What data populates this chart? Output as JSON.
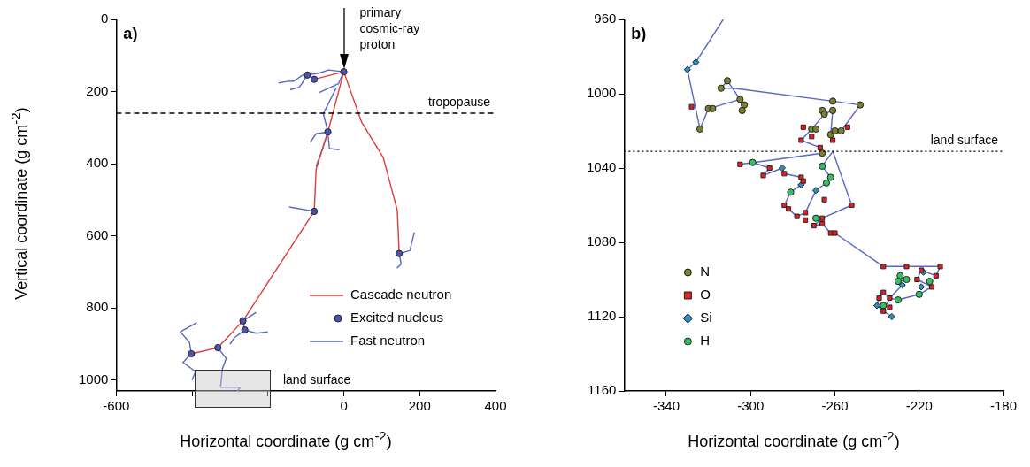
{
  "chart_data": [
    {
      "type": "line",
      "title": "a)",
      "xlabel": "Horizontal coordinate (g cm$^{-2}$)",
      "ylabel": "Vertical coordinate (g cm$^{-2}$)",
      "xlim": [
        -600,
        400
      ],
      "xticks": [
        -600,
        {
          "value": -400,
          "label": null
        },
        {
          "value": -200,
          "label": null
        },
        0,
        200,
        400
      ],
      "ylim": [
        1030,
        0
      ],
      "yticks": [
        0,
        200,
        400,
        600,
        800,
        1000
      ],
      "legend": "bottom right",
      "ref_lines": [
        {
          "axis": "y",
          "value": 260,
          "label": "tropopause",
          "color": "#000000",
          "line_style": "dashed"
        }
      ],
      "annotations": [
        {
          "text": "primary cosmic-ray proton",
          "x": 0,
          "y": 145
        },
        "land surface"
      ],
      "series": [
        {
          "name": "Cascade neutron",
          "color": "#e03a3a",
          "x": [
            0,
            -78,
            null,
            0,
            -42,
            -73,
            -78,
            -266,
            -332,
            -402,
            null,
            0,
            47,
            104,
            141,
            146
          ],
          "values": [
            145,
            166,
            null,
            145,
            312,
            415,
            532,
            836,
            910,
            927,
            null,
            145,
            285,
            383,
            529,
            649
          ]
        },
        {
          "name": "Excited nucleus",
          "type": "scatter",
          "marker": "circle",
          "color": "#4a55b0",
          "x": [
            0,
            -96,
            -78,
            -42,
            -78,
            146,
            -266,
            -261,
            -332,
            -402
          ],
          "values": [
            145,
            154,
            166,
            312,
            532,
            649,
            836,
            861,
            910,
            927
          ]
        },
        {
          "name": "Fast neutron",
          "color": "#5866c4",
          "x": [
            -172,
            -150,
            -132,
            -108,
            -96,
            -112,
            -118,
            -141,
            null,
            -96,
            -70,
            -40,
            0,
            null,
            0,
            -14,
            -66,
            null,
            -20,
            -54,
            -42,
            null,
            -89,
            -73,
            -42,
            -38,
            -12,
            null,
            -42,
            -60,
            -73,
            null,
            -144,
            -78,
            null,
            186,
            174,
            146,
            151,
            140,
            null,
            -231,
            -266,
            -261,
            -230,
            -200,
            null,
            -261,
            -289,
            -300,
            null,
            -388,
            -431,
            -407,
            -402,
            -424,
            -391,
            -400,
            null,
            -332,
            -310,
            -320,
            -325,
            -273,
            -280
          ],
          "values": [
            176,
            172,
            171,
            154,
            154,
            180,
            188,
            195,
            null,
            154,
            150,
            140,
            145,
            null,
            145,
            178,
            203,
            null,
            190,
            261,
            312,
            null,
            341,
            317,
            312,
            358,
            361,
            null,
            312,
            370,
            407,
            null,
            520,
            532,
            null,
            590,
            641,
            649,
            678,
            690,
            null,
            812,
            836,
            861,
            870,
            866,
            null,
            861,
            883,
            900,
            null,
            841,
            866,
            895,
            927,
            951,
            976,
            1000,
            null,
            910,
            940,
            968,
            1020,
            1020,
            1030
          ]
        }
      ]
    },
    {
      "type": "scatter",
      "title": "b)",
      "xlabel": "Horizontal coordinate (g cm$^{-2}$)",
      "xlim": [
        -360,
        -180
      ],
      "xticks": [
        -340,
        -300,
        -260,
        -220,
        -180
      ],
      "ylim": [
        1160,
        960
      ],
      "yticks": [
        960,
        1000,
        1040,
        1080,
        1120,
        1160
      ],
      "legend": "bottom left",
      "ref_lines": [
        {
          "axis": "y",
          "value": 1031,
          "label": "land surface",
          "color": "#000000",
          "line_style": "dotted"
        }
      ],
      "series": [
        {
          "type": "line",
          "color": "#5866c4",
          "x": [
            -313,
            -326,
            -330,
            -324,
            -320,
            -305,
            -311,
            -314,
            -308,
            -261,
            -248,
            -257,
            -262,
            -261,
            -265,
            -271,
            -276,
            -267,
            -266,
            -305,
            -299,
            -291,
            -294,
            -285,
            -284,
            -276,
            -276,
            -281,
            -284,
            -282,
            -278,
            -274,
            -269,
            -264,
            -262,
            -266,
            -261,
            -252,
            -266,
            -270,
            -266,
            -262,
            -260,
            -237,
            -226,
            -210,
            -212,
            -219,
            -221,
            -214,
            -220,
            -230,
            -234,
            -237,
            -239,
            -240,
            -237,
            -233,
            null,
            -229,
            -226,
            -230,
            -228,
            -234,
            -237
          ],
          "values": [
            960,
            983,
            987,
            1019,
            1008,
            1003,
            993,
            997,
            997,
            1004,
            1006,
            1020,
            1022,
            1009,
            1011,
            1019,
            1025,
            1029,
            1032,
            1038,
            1037,
            1040,
            1044,
            1040,
            1043,
            1045,
            1049,
            1053,
            1060,
            1062,
            1066,
            1064,
            1052,
            1048,
            1045,
            1039,
            1031,
            1060,
            1067,
            1071,
            1070,
            1075,
            1075,
            1093,
            1093,
            1093,
            1098,
            1095,
            1100,
            1104,
            1108,
            1111,
            1110,
            1107,
            1110,
            1114,
            1117,
            1120,
            null,
            1098,
            1100,
            1101,
            1103,
            1110,
            1117
          ]
        },
        {
          "name": "N",
          "marker": "circle",
          "color": "#7a8030",
          "x": [
            -311,
            -314,
            -305,
            -303,
            -304,
            -320,
            -318,
            -324,
            -261,
            -248,
            -266,
            -265,
            -261,
            -271,
            -269,
            -262,
            -260,
            -257,
            -266
          ],
          "values": [
            993,
            997,
            1003,
            1006,
            1009,
            1008,
            1008,
            1019,
            1004,
            1006,
            1009,
            1011,
            1009,
            1019,
            1019,
            1022,
            1020,
            1020,
            1032
          ]
        },
        {
          "name": "O",
          "marker": "square",
          "color": "#e02020",
          "x": [
            -328,
            -275,
            -271,
            -276,
            -261,
            -254,
            -267,
            -305,
            -291,
            -294,
            -284,
            -276,
            -275,
            -265,
            -252,
            -284,
            -282,
            -278,
            -274,
            -274,
            -266,
            -266,
            -270,
            -262,
            -260,
            -237,
            -226,
            -210,
            -212,
            -219,
            -221,
            -214,
            -237,
            -239,
            -234,
            -234,
            -237
          ],
          "values": [
            1007,
            1018,
            1023,
            1025,
            1025,
            1018,
            1029,
            1038,
            1040,
            1044,
            1043,
            1045,
            1047,
            1057,
            1060,
            1060,
            1062,
            1066,
            1064,
            1068,
            1067,
            1070,
            1071,
            1075,
            1075,
            1093,
            1093,
            1093,
            1098,
            1095,
            1100,
            1104,
            1107,
            1110,
            1110,
            1115,
            1117
          ]
        },
        {
          "name": "Si",
          "marker": "diamond",
          "color": "#2a8fc0",
          "x": [
            -326,
            -330,
            -285,
            -276,
            -269,
            -218,
            -219,
            -228,
            -240,
            -233
          ],
          "values": [
            983,
            987,
            1040,
            1049,
            1052,
            1096,
            1104,
            1103,
            1114,
            1120
          ]
        },
        {
          "name": "H",
          "marker": "circle",
          "color": "#33c060",
          "x": [
            -299,
            -266,
            -262,
            -264,
            -281,
            -269,
            -229,
            -226,
            -230,
            -215,
            -220,
            -230,
            -237
          ],
          "values": [
            1037,
            1039,
            1045,
            1048,
            1053,
            1067,
            1098,
            1100,
            1101,
            1101,
            1108,
            1111,
            1114
          ]
        }
      ]
    }
  ]
}
